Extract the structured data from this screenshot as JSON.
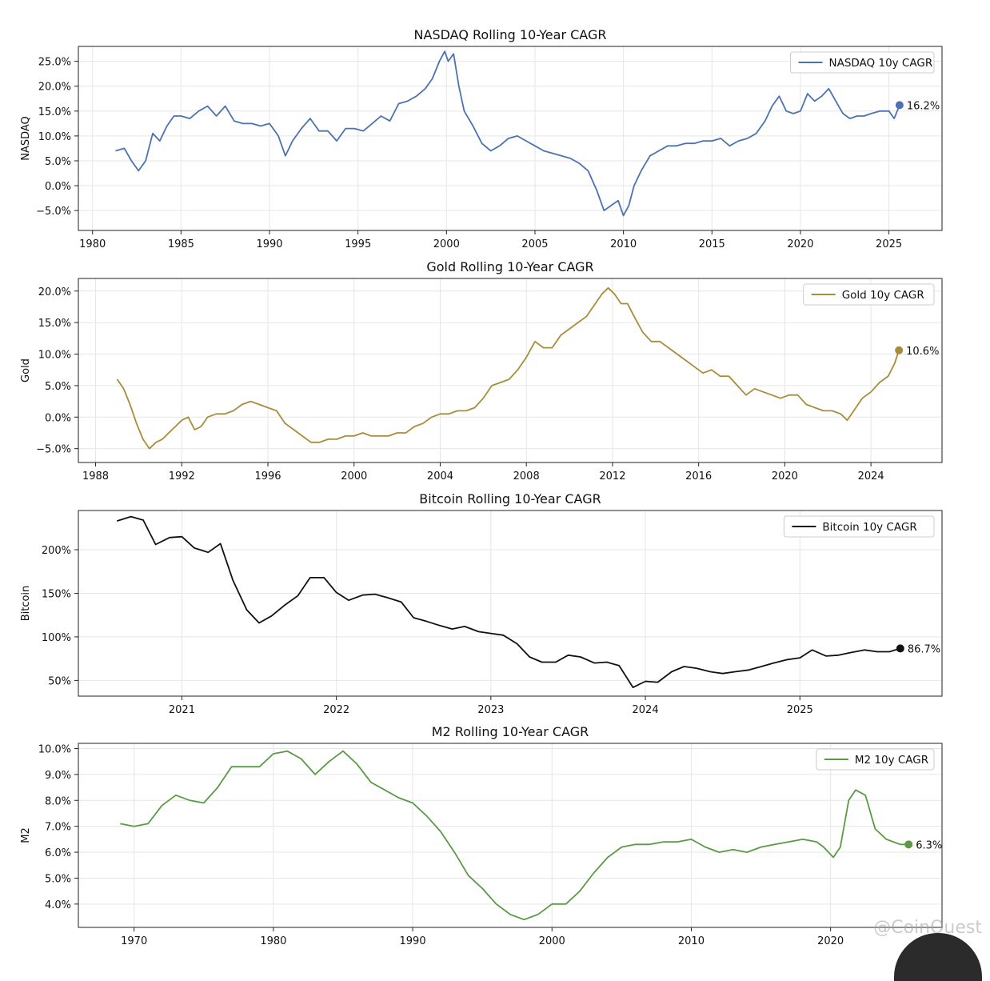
{
  "watermark": "@CoinQuest",
  "chart_data": [
    {
      "type": "line",
      "title": "NASDAQ Rolling 10-Year CAGR",
      "ylabel": "NASDAQ",
      "legend": "NASDAQ 10y CAGR",
      "legend_position": "top-right",
      "color": "#4c72b0",
      "grid": true,
      "xlim": [
        1979.2,
        2028.0
      ],
      "ylim": [
        -9.0,
        28.0
      ],
      "xticks": [
        1980,
        1985,
        1990,
        1995,
        2000,
        2005,
        2010,
        2015,
        2020,
        2025
      ],
      "xtick_labels": [
        "1980",
        "1985",
        "1990",
        "1995",
        "2000",
        "2005",
        "2010",
        "2015",
        "2020",
        "2025"
      ],
      "yticks": [
        -5,
        0,
        5,
        10,
        15,
        20,
        25
      ],
      "ytick_labels": [
        "−5.0%",
        "0.0%",
        "5.0%",
        "10.0%",
        "15.0%",
        "20.0%",
        "25.0%"
      ],
      "end_label": "16.2%",
      "x": [
        1981.3,
        1981.8,
        1982.2,
        1982.6,
        1983.0,
        1983.4,
        1983.8,
        1984.2,
        1984.6,
        1985.0,
        1985.5,
        1986.0,
        1986.5,
        1987.0,
        1987.5,
        1988.0,
        1988.5,
        1989.0,
        1989.5,
        1990.0,
        1990.5,
        1990.9,
        1991.3,
        1991.8,
        1992.3,
        1992.8,
        1993.3,
        1993.8,
        1994.3,
        1994.8,
        1995.3,
        1995.8,
        1996.3,
        1996.8,
        1997.3,
        1997.8,
        1998.3,
        1998.8,
        1999.2,
        1999.6,
        1999.9,
        2000.1,
        2000.4,
        2000.7,
        2001.0,
        2001.5,
        2002.0,
        2002.5,
        2003.0,
        2003.5,
        2004.0,
        2004.5,
        2005.0,
        2005.5,
        2006.0,
        2006.5,
        2007.0,
        2007.5,
        2008.0,
        2008.5,
        2008.9,
        2009.3,
        2009.7,
        2010.0,
        2010.3,
        2010.6,
        2011.0,
        2011.5,
        2012.0,
        2012.5,
        2013.0,
        2013.5,
        2014.0,
        2014.5,
        2015.0,
        2015.5,
        2016.0,
        2016.5,
        2017.0,
        2017.5,
        2018.0,
        2018.4,
        2018.8,
        2019.2,
        2019.6,
        2020.0,
        2020.4,
        2020.8,
        2021.2,
        2021.6,
        2022.0,
        2022.4,
        2022.8,
        2023.2,
        2023.6,
        2024.0,
        2024.5,
        2025.0,
        2025.3,
        2025.6
      ],
      "values": [
        7.0,
        7.5,
        5.0,
        3.0,
        5.0,
        10.5,
        9.0,
        12.0,
        14.0,
        14.0,
        13.5,
        15.0,
        16.0,
        14.0,
        16.0,
        13.0,
        12.5,
        12.5,
        12.0,
        12.5,
        10.0,
        6.0,
        9.0,
        11.5,
        13.5,
        11.0,
        11.0,
        9.0,
        11.5,
        11.5,
        11.0,
        12.5,
        14.0,
        13.0,
        16.5,
        17.0,
        18.0,
        19.5,
        21.5,
        25.0,
        27.0,
        25.0,
        26.5,
        20.0,
        15.0,
        12.0,
        8.5,
        7.0,
        8.0,
        9.5,
        10.0,
        9.0,
        8.0,
        7.0,
        6.5,
        6.0,
        5.5,
        4.5,
        3.0,
        -1.0,
        -5.0,
        -4.0,
        -3.0,
        -6.0,
        -4.0,
        0.0,
        3.0,
        6.0,
        7.0,
        8.0,
        8.0,
        8.5,
        8.5,
        9.0,
        9.0,
        9.5,
        8.0,
        9.0,
        9.5,
        10.5,
        13.0,
        16.0,
        18.0,
        15.0,
        14.5,
        15.0,
        18.5,
        17.0,
        18.0,
        19.5,
        17.0,
        14.5,
        13.5,
        14.0,
        14.0,
        14.5,
        15.0,
        15.0,
        13.5,
        16.2
      ]
    },
    {
      "type": "line",
      "title": "Gold Rolling 10-Year CAGR",
      "ylabel": "Gold",
      "legend": "Gold 10y CAGR",
      "legend_position": "top-right",
      "color": "#a88c3c",
      "grid": true,
      "xlim": [
        1987.2,
        2027.3
      ],
      "ylim": [
        -7.2,
        22.0
      ],
      "xticks": [
        1988,
        1992,
        1996,
        2000,
        2004,
        2008,
        2012,
        2016,
        2020,
        2024
      ],
      "xtick_labels": [
        "1988",
        "1992",
        "1996",
        "2000",
        "2004",
        "2008",
        "2012",
        "2016",
        "2020",
        "2024"
      ],
      "yticks": [
        -5,
        0,
        5,
        10,
        15,
        20
      ],
      "ytick_labels": [
        "−5.0%",
        "0.0%",
        "5.0%",
        "10.0%",
        "15.0%",
        "20.0%"
      ],
      "end_label": "10.6%",
      "x": [
        1989.0,
        1989.3,
        1989.6,
        1989.9,
        1990.2,
        1990.5,
        1990.8,
        1991.1,
        1991.4,
        1991.7,
        1992.0,
        1992.3,
        1992.6,
        1992.9,
        1993.2,
        1993.6,
        1994.0,
        1994.4,
        1994.8,
        1995.2,
        1995.6,
        1996.0,
        1996.4,
        1996.8,
        1997.2,
        1997.6,
        1998.0,
        1998.4,
        1998.8,
        1999.2,
        1999.6,
        2000.0,
        2000.4,
        2000.8,
        2001.2,
        2001.6,
        2002.0,
        2002.4,
        2002.8,
        2003.2,
        2003.6,
        2004.0,
        2004.4,
        2004.8,
        2005.2,
        2005.6,
        2006.0,
        2006.4,
        2006.8,
        2007.2,
        2007.6,
        2008.0,
        2008.4,
        2008.8,
        2009.2,
        2009.6,
        2010.0,
        2010.4,
        2010.8,
        2011.2,
        2011.5,
        2011.8,
        2012.1,
        2012.4,
        2012.7,
        2013.0,
        2013.4,
        2013.8,
        2014.2,
        2014.6,
        2015.0,
        2015.4,
        2015.8,
        2016.2,
        2016.6,
        2017.0,
        2017.4,
        2017.8,
        2018.2,
        2018.6,
        2019.0,
        2019.4,
        2019.8,
        2020.2,
        2020.6,
        2021.0,
        2021.4,
        2021.8,
        2022.2,
        2022.6,
        2022.9,
        2023.2,
        2023.6,
        2024.0,
        2024.4,
        2024.8,
        2025.1,
        2025.3
      ],
      "values": [
        6.0,
        4.5,
        2.0,
        -1.0,
        -3.5,
        -5.0,
        -4.0,
        -3.5,
        -2.5,
        -1.5,
        -0.5,
        0.0,
        -2.0,
        -1.5,
        0.0,
        0.5,
        0.5,
        1.0,
        2.0,
        2.5,
        2.0,
        1.5,
        1.0,
        -1.0,
        -2.0,
        -3.0,
        -4.0,
        -4.0,
        -3.5,
        -3.5,
        -3.0,
        -3.0,
        -2.5,
        -3.0,
        -3.0,
        -3.0,
        -2.5,
        -2.5,
        -1.5,
        -1.0,
        0.0,
        0.5,
        0.5,
        1.0,
        1.0,
        1.5,
        3.0,
        5.0,
        5.5,
        6.0,
        7.5,
        9.5,
        12.0,
        11.0,
        11.0,
        13.0,
        14.0,
        15.0,
        16.0,
        18.0,
        19.5,
        20.5,
        19.5,
        18.0,
        18.0,
        16.0,
        13.5,
        12.0,
        12.0,
        11.0,
        10.0,
        9.0,
        8.0,
        7.0,
        7.5,
        6.5,
        6.5,
        5.0,
        3.5,
        4.5,
        4.0,
        3.5,
        3.0,
        3.5,
        3.5,
        2.0,
        1.5,
        1.0,
        1.0,
        0.5,
        -0.5,
        1.0,
        3.0,
        4.0,
        5.5,
        6.5,
        8.5,
        10.6
      ]
    },
    {
      "type": "line",
      "title": "Bitcoin Rolling 10-Year CAGR",
      "ylabel": "Bitcoin",
      "legend": "Bitcoin 10y CAGR",
      "legend_position": "top-right",
      "color": "#111111",
      "grid": true,
      "xlim": [
        2020.33,
        2025.92
      ],
      "ylim": [
        32,
        245
      ],
      "xticks": [
        2021,
        2022,
        2023,
        2024,
        2025
      ],
      "xtick_labels": [
        "2021",
        "2022",
        "2023",
        "2024",
        "2025"
      ],
      "yticks": [
        50,
        100,
        150,
        200
      ],
      "ytick_labels": [
        "50%",
        "100%",
        "150%",
        "200%"
      ],
      "end_label": "86.7%",
      "x": [
        2020.58,
        2020.67,
        2020.75,
        2020.83,
        2020.92,
        2021.0,
        2021.08,
        2021.17,
        2021.25,
        2021.33,
        2021.42,
        2021.5,
        2021.58,
        2021.67,
        2021.75,
        2021.83,
        2021.92,
        2022.0,
        2022.08,
        2022.17,
        2022.25,
        2022.33,
        2022.42,
        2022.5,
        2022.58,
        2022.67,
        2022.75,
        2022.83,
        2022.92,
        2023.0,
        2023.08,
        2023.17,
        2023.25,
        2023.33,
        2023.42,
        2023.5,
        2023.58,
        2023.67,
        2023.75,
        2023.83,
        2023.92,
        2024.0,
        2024.08,
        2024.17,
        2024.25,
        2024.33,
        2024.42,
        2024.5,
        2024.58,
        2024.67,
        2024.75,
        2024.83,
        2024.92,
        2025.0,
        2025.08,
        2025.17,
        2025.25,
        2025.33,
        2025.42,
        2025.5,
        2025.58,
        2025.65
      ],
      "values": [
        233,
        238,
        234,
        206,
        214,
        215,
        202,
        197,
        207,
        165,
        131,
        116,
        124,
        137,
        147,
        168,
        168,
        151,
        142,
        148,
        149,
        145,
        140,
        122,
        118,
        113,
        109,
        112,
        106,
        104,
        102,
        92,
        77,
        71,
        71,
        79,
        77,
        70,
        71,
        67,
        42,
        49,
        48,
        60,
        66,
        64,
        60,
        58,
        60,
        62,
        66,
        70,
        74,
        76,
        85,
        78,
        79,
        82,
        85,
        83,
        83,
        86.7
      ]
    },
    {
      "type": "line",
      "title": "M2 Rolling 10-Year CAGR",
      "ylabel": "M2",
      "legend": "M2 10y CAGR",
      "legend_position": "top-right",
      "color": "#5a9a45",
      "grid": true,
      "xlim": [
        1966.0,
        2028.0
      ],
      "ylim": [
        3.1,
        10.2
      ],
      "xticks": [
        1970,
        1980,
        1990,
        2000,
        2010,
        2020
      ],
      "xtick_labels": [
        "1970",
        "1980",
        "1990",
        "2000",
        "2010",
        "2020"
      ],
      "yticks": [
        4,
        5,
        6,
        7,
        8,
        9,
        10
      ],
      "ytick_labels": [
        "4.0%",
        "5.0%",
        "6.0%",
        "7.0%",
        "8.0%",
        "9.0%",
        "10.0%"
      ],
      "end_label": "6.3%",
      "x": [
        1969.0,
        1970.0,
        1971.0,
        1972.0,
        1973.0,
        1974.0,
        1975.0,
        1976.0,
        1977.0,
        1978.0,
        1979.0,
        1980.0,
        1981.0,
        1982.0,
        1983.0,
        1984.0,
        1985.0,
        1986.0,
        1987.0,
        1988.0,
        1989.0,
        1990.0,
        1991.0,
        1992.0,
        1993.0,
        1994.0,
        1995.0,
        1996.0,
        1997.0,
        1998.0,
        1999.0,
        2000.0,
        2001.0,
        2002.0,
        2003.0,
        2004.0,
        2005.0,
        2006.0,
        2007.0,
        2008.0,
        2009.0,
        2010.0,
        2011.0,
        2012.0,
        2013.0,
        2014.0,
        2015.0,
        2016.0,
        2017.0,
        2018.0,
        2019.0,
        2019.5,
        2020.2,
        2020.7,
        2021.3,
        2021.8,
        2022.5,
        2023.2,
        2024.0,
        2025.0,
        2025.6
      ],
      "values": [
        7.1,
        7.0,
        7.1,
        7.8,
        8.2,
        8.0,
        7.9,
        8.5,
        9.3,
        9.3,
        9.3,
        9.8,
        9.9,
        9.6,
        9.0,
        9.5,
        9.9,
        9.4,
        8.7,
        8.4,
        8.1,
        7.9,
        7.4,
        6.8,
        6.0,
        5.1,
        4.6,
        4.0,
        3.6,
        3.4,
        3.6,
        4.0,
        4.0,
        4.5,
        5.2,
        5.8,
        6.2,
        6.3,
        6.3,
        6.4,
        6.4,
        6.5,
        6.2,
        6.0,
        6.1,
        6.0,
        6.2,
        6.3,
        6.4,
        6.5,
        6.4,
        6.2,
        5.8,
        6.2,
        8.0,
        8.4,
        8.2,
        6.9,
        6.5,
        6.3,
        6.3
      ]
    }
  ]
}
